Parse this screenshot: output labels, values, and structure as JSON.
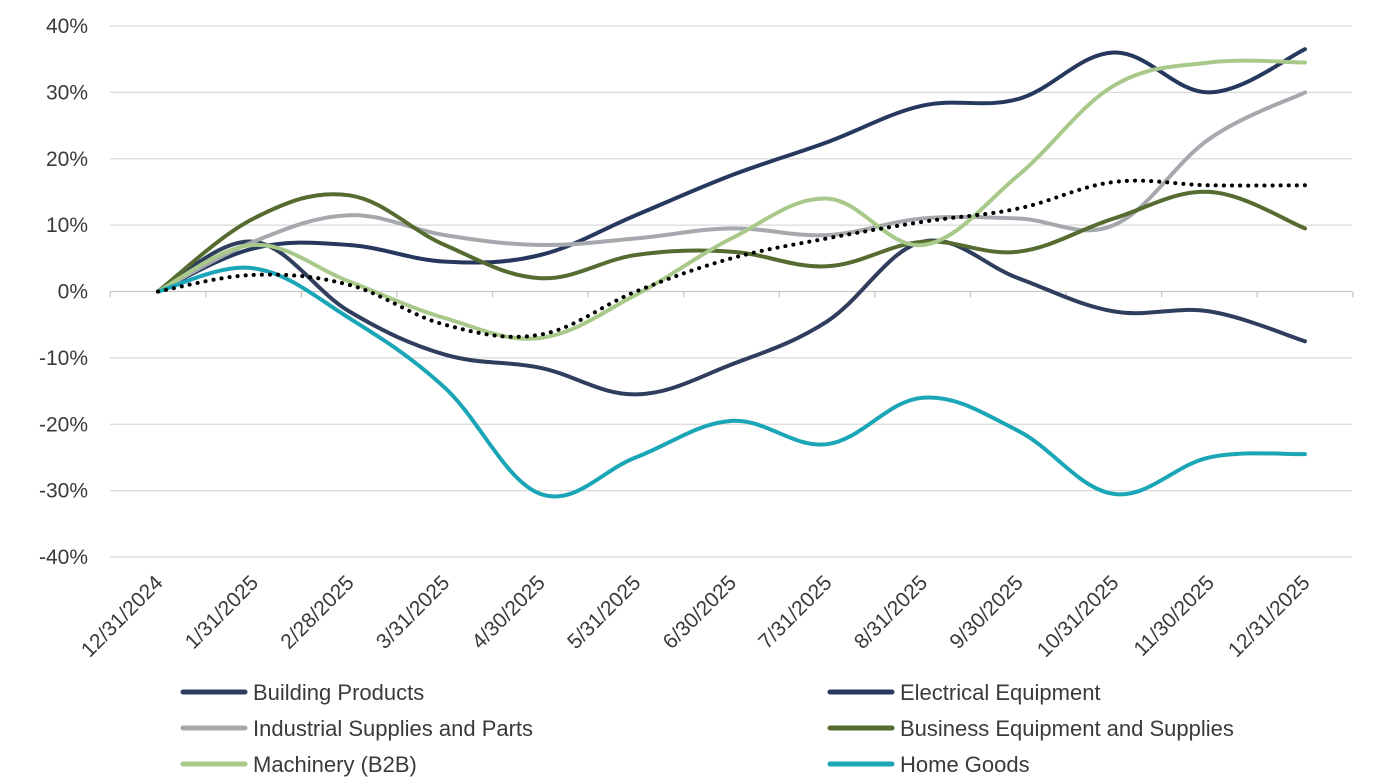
{
  "chart_data": {
    "type": "line",
    "title": "",
    "xlabel": "",
    "ylabel": "",
    "x": [
      "12/31/2024",
      "1/31/2025",
      "2/28/2025",
      "3/31/2025",
      "4/30/2025",
      "5/31/2025",
      "6/30/2025",
      "7/31/2025",
      "8/31/2025",
      "9/30/2025",
      "10/31/2025",
      "11/30/2025",
      "12/31/2025"
    ],
    "ylim": [
      -40,
      40
    ],
    "yticks": [
      40,
      30,
      20,
      10,
      0,
      -10,
      -20,
      -30,
      -40
    ],
    "ytick_labels": [
      "40%",
      "30%",
      "20%",
      "10%",
      "0%",
      "-10%",
      "-20%",
      "-30%",
      "-40%"
    ],
    "grid": "horizontal",
    "legend_position": "bottom",
    "series": [
      {
        "name": "Building Products",
        "color": "#2e3e5c",
        "style": "solid",
        "values": [
          0,
          7.5,
          -3,
          -9.5,
          -11.5,
          -15.5,
          -11,
          -4.5,
          7.5,
          2,
          -3,
          -3,
          -7.5
        ]
      },
      {
        "name": "Electrical Equipment",
        "color": "#27385f",
        "style": "solid",
        "values": [
          0,
          6.5,
          7,
          4.5,
          5.5,
          11.5,
          17.5,
          22.5,
          28,
          29,
          36,
          30,
          36.5
        ]
      },
      {
        "name": "Industrial Supplies and Parts",
        "color": "#a5a8ad",
        "style": "solid",
        "values": [
          0,
          7.5,
          11.5,
          8.5,
          7,
          8,
          9.5,
          8.5,
          11,
          11,
          10,
          23,
          30
        ]
      },
      {
        "name": "Business Equipment and Supplies",
        "color": "#556b2f",
        "style": "solid",
        "values": [
          0,
          11,
          14.5,
          7,
          2,
          5.5,
          6,
          3.8,
          7.5,
          6,
          11,
          15,
          9.5
        ]
      },
      {
        "name": "Machinery (B2B)",
        "color": "#a9c98b",
        "style": "solid",
        "values": [
          0,
          7,
          1.5,
          -4,
          -7,
          -0.5,
          8,
          14,
          7,
          17.5,
          31,
          34.5,
          34.5
        ]
      },
      {
        "name": "Home Goods",
        "color": "#1aa6b7",
        "style": "solid",
        "values": [
          0,
          3.5,
          -4,
          -14.5,
          -30.5,
          -25,
          -19.5,
          -23,
          -16,
          -21,
          -30.5,
          -25,
          -24.5
        ]
      },
      {
        "name": "",
        "color": "#000000",
        "style": "dotted",
        "values": [
          0,
          2.5,
          1,
          -5,
          -6.5,
          0,
          5,
          8,
          10.5,
          12.5,
          16.5,
          16,
          16
        ]
      }
    ],
    "legend": [
      {
        "label": "Building Products",
        "color": "#2e3e5c"
      },
      {
        "label": "Electrical Equipment",
        "color": "#27385f"
      },
      {
        "label": "Industrial Supplies and Parts",
        "color": "#a5a8ad"
      },
      {
        "label": "Business Equipment and Supplies",
        "color": "#556b2f"
      },
      {
        "label": "Machinery (B2B)",
        "color": "#a9c98b"
      },
      {
        "label": "Home Goods",
        "color": "#1aa6b7"
      }
    ]
  }
}
